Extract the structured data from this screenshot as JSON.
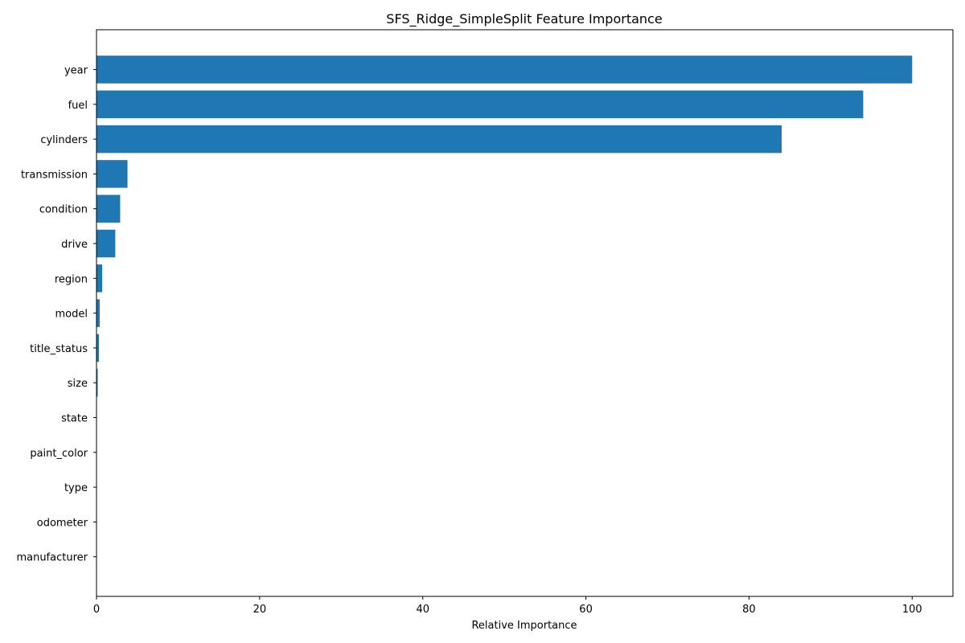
{
  "chart_data": {
    "type": "bar",
    "orientation": "horizontal",
    "title": "SFS_Ridge_SimpleSplit Feature Importance",
    "xlabel": "Relative Importance",
    "ylabel": "",
    "categories": [
      "year",
      "fuel",
      "cylinders",
      "transmission",
      "condition",
      "drive",
      "region",
      "model",
      "title_status",
      "size",
      "state",
      "paint_color",
      "type",
      "odometer",
      "manufacturer"
    ],
    "values": [
      100,
      94,
      84,
      3.8,
      2.9,
      2.3,
      0.7,
      0.4,
      0.3,
      0.15,
      0.03,
      0.02,
      0.01,
      0.005,
      0.002
    ],
    "xlim": [
      0,
      105
    ],
    "xticks": [
      0,
      20,
      40,
      60,
      80,
      100
    ],
    "grid": false,
    "bar_color": "#1f77b4"
  }
}
